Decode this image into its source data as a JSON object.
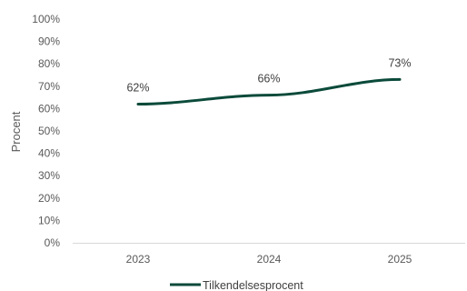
{
  "chart_data": {
    "type": "line",
    "categories": [
      "2023",
      "2024",
      "2025"
    ],
    "series": [
      {
        "name": "Tilkendelsesprocent",
        "values": [
          62,
          66,
          73
        ],
        "data_labels": [
          "62%",
          "66%",
          "73%"
        ]
      }
    ],
    "ylabel": "Procent",
    "xlabel": "",
    "ylim": [
      0,
      100
    ],
    "yticks": [
      "0%",
      "10%",
      "20%",
      "30%",
      "40%",
      "50%",
      "60%",
      "70%",
      "80%",
      "90%",
      "100%"
    ],
    "grid": false,
    "legend_position": "bottom",
    "colors": {
      "line": "#0b4a3a",
      "text": "#595959",
      "axis": "#d9d9d9"
    }
  }
}
